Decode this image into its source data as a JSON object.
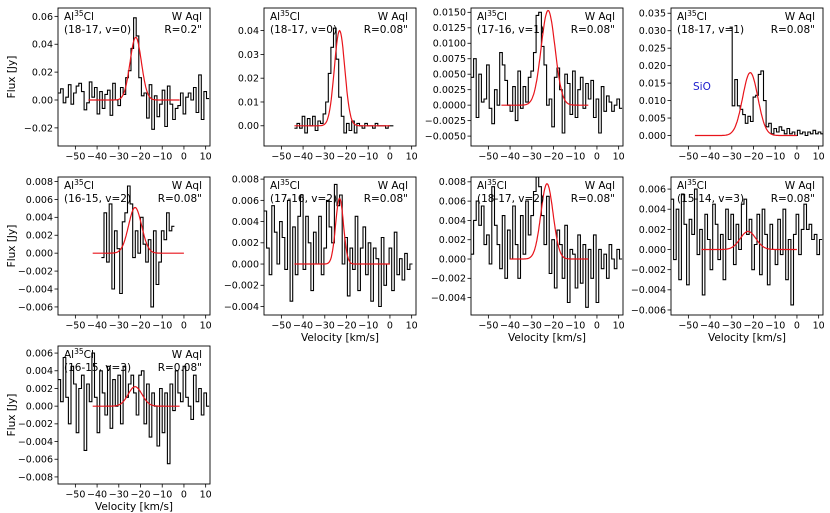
{
  "chart_data": [
    {
      "type": "line",
      "molecule": "Al",
      "isotope": "35",
      "element": "Cl",
      "transition": "(18-17, v=0)",
      "star": "W Aql",
      "aperture": "R=0.2\"",
      "xlim": [
        -58,
        12
      ],
      "ylim": [
        -0.033,
        0.066
      ],
      "xticks": [
        -50,
        -40,
        -30,
        -20,
        -10,
        0,
        10
      ],
      "yticks": [
        -0.02,
        0.0,
        0.02,
        0.04,
        0.06
      ],
      "ytick_labels": [
        "-0.02",
        "0.00",
        "0.02",
        "0.04",
        "0.06"
      ],
      "ylabel": "Flux [Jy]",
      "xlabel": "",
      "fit": {
        "amp": 0.045,
        "center": -22.2,
        "sigma": 2.6,
        "x0": -44,
        "x1": -2,
        "y0": 0.0
      },
      "spectrum": {
        "x0": -58,
        "step": 1.2,
        "values": [
          0.005,
          0.008,
          -0.002,
          0.002,
          0.011,
          -0.003,
          0.005,
          0.01,
          0.012,
          0.006,
          -0.007,
          -0.002,
          0.013,
          0.002,
          0.009,
          -0.01,
          0.006,
          -0.006,
          0.004,
          0.007,
          -0.011,
          0.012,
          0.0,
          -0.004,
          0.009,
          0.004,
          0.016,
          0.021,
          0.037,
          0.059,
          0.046,
          0.016,
          0.003,
          0.005,
          -0.013,
          0.011,
          -0.021,
          0.003,
          -0.012,
          -0.003,
          0.007,
          -0.019,
          0.01,
          -0.003,
          -0.014,
          -0.006,
          -0.004,
          0.005,
          -0.01,
          0.002,
          0.005,
          0.0,
          0.009,
          -0.009,
          0.018,
          -0.014,
          0.006,
          0.001
        ]
      }
    },
    {
      "type": "line",
      "molecule": "Al",
      "isotope": "35",
      "element": "Cl",
      "transition": "(18-17, v=0)",
      "star": "W Aql",
      "aperture": "R=0.08\"",
      "xlim": [
        -58,
        12
      ],
      "ylim": [
        -0.0085,
        0.0495
      ],
      "xticks": [
        -50,
        -40,
        -30,
        -20,
        -10,
        0,
        10
      ],
      "yticks": [
        0.0,
        0.01,
        0.02,
        0.03,
        0.04
      ],
      "ytick_labels": [
        "0.00",
        "0.01",
        "0.02",
        "0.03",
        "0.04"
      ],
      "ylabel": "",
      "xlabel": "",
      "fit": {
        "amp": 0.04,
        "center": -23.2,
        "sigma": 2.4,
        "x0": -44,
        "x1": 0,
        "y0": 0.0
      },
      "spectrum": {
        "x0": -44,
        "step": 1.2,
        "values": [
          -0.001,
          0.001,
          -0.001,
          0.004,
          -0.003,
          0.003,
          0.0,
          0.004,
          -0.002,
          0.002,
          0.001,
          0.005,
          0.01,
          0.022,
          0.033,
          0.041,
          0.028,
          0.012,
          0.004,
          -0.003,
          0.001,
          -0.002,
          0.002,
          -0.003,
          0.001,
          0.0,
          -0.001,
          0.001,
          0.0,
          0.0,
          -0.001,
          0.001,
          0.0,
          0.0,
          0.0,
          -0.001,
          0.0,
          0.0
        ]
      }
    },
    {
      "type": "line",
      "molecule": "Al",
      "isotope": "35",
      "element": "Cl",
      "transition": "(17-16, v=1)",
      "star": "W Aql",
      "aperture": "R=0.08\"",
      "xlim": [
        -58,
        12
      ],
      "ylim": [
        -0.0066,
        0.0157
      ],
      "xticks": [
        -50,
        -40,
        -30,
        -20,
        -10,
        0,
        10
      ],
      "yticks": [
        -0.005,
        -0.0025,
        0.0,
        0.0025,
        0.005,
        0.0075,
        0.01,
        0.0125,
        0.015
      ],
      "ytick_labels": [
        "-0.0050",
        "-0.0025",
        "0.0000",
        "0.0025",
        "0.0050",
        "0.0075",
        "0.0100",
        "0.0125",
        "0.0150"
      ],
      "ylabel": "",
      "xlabel": "",
      "fit": {
        "amp": 0.0153,
        "center": -22.5,
        "sigma": 3.2,
        "x0": -44,
        "x1": -4,
        "y0": 0.0
      },
      "spectrum": {
        "x0": -58,
        "step": 1.2,
        "values": [
          0.0045,
          0.0075,
          -0.002,
          0.005,
          0.0005,
          0.001,
          0.0065,
          -0.0005,
          -0.003,
          0.0025,
          0.0,
          0.0085,
          0.0065,
          0.004,
          0.0,
          -0.001,
          0.003,
          -0.0025,
          0.0055,
          -0.0005,
          0.003,
          0.0005,
          0.0045,
          0.0055,
          0.0085,
          0.0145,
          0.015,
          0.0095,
          0.0065,
          0.0,
          0.001,
          -0.0035,
          0.0045,
          0.006,
          0.0025,
          -0.0045,
          0.005,
          0.0035,
          -0.0015,
          0.0055,
          -0.002,
          0.0025,
          0.0045,
          -0.0005,
          0.0035,
          0.001,
          0.004,
          -0.002,
          0.001,
          -0.0045,
          0.003,
          -0.001,
          0.0015,
          0.0005,
          -0.001,
          0.0,
          0.001,
          -0.0005
        ]
      }
    },
    {
      "type": "line",
      "molecule": "Al",
      "isotope": "35",
      "element": "Cl",
      "transition": "(18-17, v=1)",
      "star": "W Aql",
      "aperture": "R=0.08\"",
      "xlim": [
        -58,
        12
      ],
      "ylim": [
        -0.003,
        0.0365
      ],
      "xticks": [
        -50,
        -40,
        -30,
        -20,
        -10,
        0,
        10
      ],
      "yticks": [
        0.0,
        0.005,
        0.01,
        0.015,
        0.02,
        0.025,
        0.03,
        0.035
      ],
      "ytick_labels": [
        "0.000",
        "0.005",
        "0.010",
        "0.015",
        "0.020",
        "0.025",
        "0.030",
        "0.035"
      ],
      "ylabel": "",
      "xlabel": "",
      "note": "SiO",
      "fit": {
        "amp": 0.018,
        "center": -21.5,
        "sigma": 3.5,
        "x0": -47,
        "x1": 0,
        "y0": 0.0
      },
      "spectrum": {
        "x0": -31,
        "step": 1.2,
        "values": [
          0.031,
          0.0085,
          0.016,
          0.0085,
          0.0075,
          0.006,
          0.0035,
          0.0055,
          0.004,
          0.011,
          0.0115,
          0.0175,
          0.0185,
          0.01,
          0.0025,
          0.0035,
          0.0005,
          0.002,
          0.001,
          0.0025,
          0.0015,
          0.0005,
          0.002,
          0.0005,
          0.001,
          0.0,
          0.0015,
          0.0005,
          0.001,
          0.0,
          0.001,
          0.0005,
          0.0015,
          0.0005,
          0.001,
          0.0005,
          0.0
        ]
      }
    },
    {
      "type": "line",
      "molecule": "Al",
      "isotope": "35",
      "element": "Cl",
      "transition": "(16-15, v=2)",
      "star": "W Aql",
      "aperture": "R=0.08\"",
      "xlim": [
        -58,
        12
      ],
      "ylim": [
        -0.0069,
        0.0085
      ],
      "xticks": [
        -50,
        -40,
        -30,
        -20,
        -10,
        0,
        10
      ],
      "yticks": [
        -0.006,
        -0.004,
        -0.002,
        0.0,
        0.002,
        0.004,
        0.006,
        0.008
      ],
      "ytick_labels": [
        "-0.006",
        "-0.004",
        "-0.002",
        "0.000",
        "0.002",
        "0.004",
        "0.006",
        "0.008"
      ],
      "ylabel": "Flux [Jy]",
      "xlabel": "",
      "fit": {
        "amp": 0.0051,
        "center": -22.5,
        "sigma": 3.0,
        "x0": -42,
        "x1": 0,
        "y0": 0.0
      },
      "spectrum": {
        "x0": -38,
        "step": 1.2,
        "values": [
          -0.0005,
          0.0045,
          -0.001,
          0.0055,
          -0.004,
          0.0025,
          0.0005,
          -0.0045,
          0.0035,
          0.0045,
          0.0075,
          0.0055,
          -0.0005,
          0.0025,
          0.0,
          0.004,
          0.001,
          -0.001,
          0.0015,
          -0.006,
          0.0025,
          -0.0035,
          -0.001,
          0.0025,
          0.0015,
          0.0045,
          0.0025,
          0.003
        ]
      }
    },
    {
      "type": "line",
      "molecule": "Al",
      "isotope": "35",
      "element": "Cl",
      "transition": "(17-16, v=2)",
      "star": "W Aql",
      "aperture": "R=0.08\"",
      "xlim": [
        -58,
        12
      ],
      "ylim": [
        -0.0048,
        0.0082
      ],
      "xticks": [
        -50,
        -40,
        -30,
        -20,
        -10,
        0,
        10
      ],
      "yticks": [
        -0.004,
        -0.002,
        0.0,
        0.002,
        0.004,
        0.006,
        0.008
      ],
      "ytick_labels": [
        "-0.004",
        "-0.002",
        "0.000",
        "0.002",
        "0.004",
        "0.006",
        "0.008"
      ],
      "ylabel": "",
      "xlabel": "Velocity [km/s]",
      "fit": {
        "amp": 0.0062,
        "center": -23.2,
        "sigma": 1.8,
        "x0": -44,
        "x1": 0,
        "y0": 0.0
      },
      "spectrum": {
        "x0": -58,
        "step": 1.2,
        "values": [
          0.005,
          0.0015,
          -0.001,
          0.0055,
          0.003,
          0.0,
          0.004,
          0.0025,
          -0.0005,
          0.006,
          -0.0035,
          0.0035,
          -0.001,
          0.0045,
          0.0065,
          -0.0005,
          0.0045,
          0.002,
          -0.0025,
          0.003,
          0.0,
          0.0045,
          -0.001,
          0.0015,
          0.006,
          0.0035,
          0.002,
          0.0075,
          0.0055,
          0.0065,
          0.0,
          0.0025,
          -0.003,
          0.0015,
          -0.0005,
          0.0045,
          -0.0025,
          0.0015,
          0.0035,
          -0.001,
          0.002,
          -0.0035,
          0.0015,
          0.0005,
          -0.004,
          0.0025,
          -0.002,
          0.0,
          0.0015,
          -0.0025,
          0.003,
          -0.001,
          0.0005,
          -0.0015,
          0.001,
          -0.0005,
          0.0
        ]
      }
    },
    {
      "type": "line",
      "molecule": "Al",
      "isotope": "35",
      "element": "Cl",
      "transition": "(18-17, v=2)",
      "star": "W Aql",
      "aperture": "R=0.08\"",
      "xlim": [
        -58,
        12
      ],
      "ylim": [
        -0.0058,
        0.0085
      ],
      "xticks": [
        -50,
        -40,
        -30,
        -20,
        -10,
        0,
        10
      ],
      "yticks": [
        -0.004,
        -0.002,
        0.0,
        0.002,
        0.004,
        0.006,
        0.008
      ],
      "ytick_labels": [
        "-0.004",
        "-0.002",
        "0.000",
        "0.002",
        "0.004",
        "0.006",
        "0.008"
      ],
      "ylabel": "",
      "xlabel": "Velocity [km/s]",
      "fit": {
        "amp": 0.0078,
        "center": -23.0,
        "sigma": 2.8,
        "x0": -40,
        "x1": -4,
        "y0": 0.0
      },
      "spectrum": {
        "x0": -58,
        "step": 1.2,
        "values": [
          0.0005,
          0.004,
          0.006,
          0.0035,
          0.0055,
          0.0015,
          0.0025,
          -0.0005,
          0.0075,
          0.0035,
          0.0015,
          -0.001,
          0.0045,
          -0.002,
          0.003,
          0.0,
          0.0055,
          0.0015,
          -0.002,
          0.0045,
          0.0005,
          0.006,
          0.0025,
          0.0045,
          0.007,
          0.0085,
          0.0075,
          0.0045,
          0.0015,
          0.0065,
          -0.0015,
          0.002,
          -0.003,
          0.003,
          0.0015,
          -0.002,
          0.0035,
          -0.0045,
          0.001,
          0.0005,
          -0.003,
          0.0025,
          -0.0025,
          0.0015,
          -0.005,
          0.001,
          -0.002,
          0.0025,
          -0.0045,
          0.001,
          -0.001,
          0.0005,
          -0.002,
          0.0015,
          0.0,
          -0.001,
          0.001,
          0.0
        ]
      }
    },
    {
      "type": "line",
      "molecule": "Al",
      "isotope": "35",
      "element": "Cl",
      "transition": "(15-14, v=3)",
      "star": "W Aql",
      "aperture": "R=0.08\"",
      "xlim": [
        -58,
        12
      ],
      "ylim": [
        -0.0065,
        0.0072
      ],
      "xticks": [
        -50,
        -40,
        -30,
        -20,
        -10,
        0,
        10
      ],
      "yticks": [
        -0.006,
        -0.004,
        -0.002,
        0.0,
        0.002,
        0.004,
        0.006
      ],
      "ytick_labels": [
        "-0.006",
        "-0.004",
        "-0.002",
        "0.000",
        "0.002",
        "0.004",
        "0.006"
      ],
      "ylabel": "",
      "xlabel": "Velocity [km/s]",
      "fit": {
        "amp": 0.0018,
        "center": -22.5,
        "sigma": 3.6,
        "x0": -44,
        "x1": 0,
        "y0": 0.0
      },
      "spectrum": {
        "x0": -58,
        "step": 1.2,
        "values": [
          0.005,
          -0.001,
          0.004,
          -0.003,
          0.0055,
          0.0025,
          -0.0035,
          0.003,
          0.0015,
          0.006,
          -0.0005,
          0.002,
          -0.0045,
          0.0035,
          0.001,
          -0.002,
          0.0045,
          0.0025,
          -0.001,
          0.0015,
          -0.003,
          0.004,
          0.001,
          0.0035,
          -0.0015,
          0.0025,
          0.0,
          0.0045,
          0.005,
          0.0015,
          0.003,
          -0.002,
          0.0005,
          0.0035,
          -0.0025,
          0.004,
          0.0015,
          -0.0035,
          0.0025,
          0.0,
          -0.0015,
          0.003,
          -0.0005,
          0.004,
          -0.003,
          0.001,
          -0.0055,
          0.0015,
          0.0035,
          -0.0005,
          0.002,
          0.0045,
          0.002,
          0.0025,
          0.001,
          0.0015,
          -0.0005,
          0.001
        ]
      }
    },
    {
      "type": "line",
      "molecule": "Al",
      "isotope": "35",
      "element": "Cl",
      "transition": "(16-15, v=3)",
      "star": "W Aql",
      "aperture": "R=0.08\"",
      "xlim": [
        -58,
        12
      ],
      "ylim": [
        -0.0088,
        0.0068
      ],
      "xticks": [
        -50,
        -40,
        -30,
        -20,
        -10,
        0,
        10
      ],
      "yticks": [
        -0.008,
        -0.006,
        -0.004,
        -0.002,
        0.0,
        0.002,
        0.004,
        0.006
      ],
      "ytick_labels": [
        "-0.008",
        "-0.006",
        "-0.004",
        "-0.002",
        "0.000",
        "0.002",
        "0.004",
        "0.006"
      ],
      "ylabel": "Flux [Jy]",
      "xlabel": "Velocity [km/s]",
      "fit": {
        "amp": 0.0022,
        "center": -22.5,
        "sigma": 3.2,
        "x0": -42,
        "x1": -2,
        "y0": 0.0
      },
      "spectrum": {
        "x0": -58,
        "step": 1.2,
        "values": [
          0.003,
          0.0005,
          0.0055,
          0.001,
          -0.002,
          0.0045,
          0.0025,
          -0.003,
          0.002,
          0.0035,
          -0.005,
          0.0025,
          0.0005,
          0.006,
          0.001,
          -0.003,
          0.004,
          0.0015,
          -0.001,
          0.0045,
          -0.0025,
          0.003,
          0.0,
          0.0035,
          -0.002,
          0.0045,
          0.001,
          0.0025,
          0.0035,
          0.0015,
          -0.001,
          0.0035,
          0.004,
          -0.002,
          0.0025,
          -0.0035,
          0.0015,
          0.0,
          -0.0045,
          0.002,
          -0.003,
          0.0015,
          -0.0065,
          0.0025,
          -0.0005,
          0.004,
          0.0015,
          0.0005,
          0.0045,
          0.001,
          0.0,
          -0.0015,
          0.0035,
          0.0005,
          0.002,
          -0.001,
          0.0015,
          0.0
        ]
      }
    }
  ]
}
